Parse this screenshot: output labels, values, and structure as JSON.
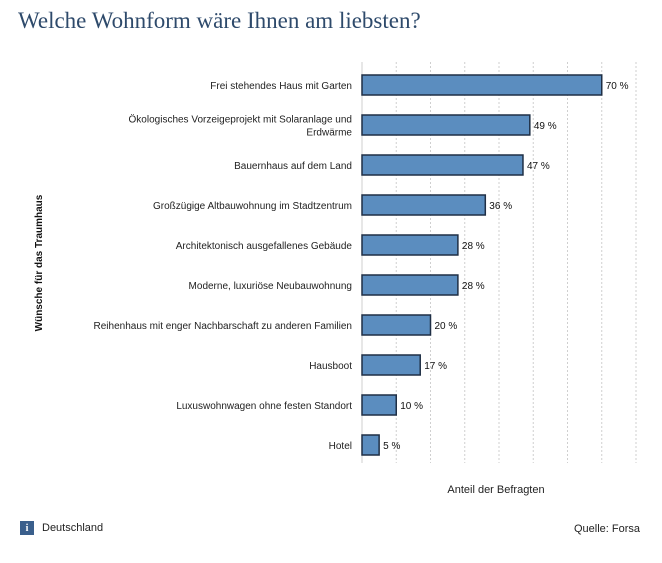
{
  "title": "Welche Wohnform wäre Ihnen am liebsten?",
  "footer": {
    "region": "Deutschland",
    "source": "Quelle: Forsa",
    "info_icon": "i"
  },
  "colors": {
    "bar": "#5b8dbf",
    "bar_stroke": "#1f2f45",
    "title": "#2e4a6b",
    "grid": "#cfcfcf"
  },
  "chart_data": {
    "type": "bar",
    "orientation": "horizontal",
    "categories": [
      "Frei stehendes Haus mit Garten",
      "Ökologisches Vorzeigeprojekt mit Solaranlage und Erdwärme",
      "Bauernhaus auf dem Land",
      "Großzügige Altbauwohnung im Stadtzentrum",
      "Architektonisch ausgefallenes Gebäude",
      "Moderne, luxuriöse Neubauwohnung",
      "Reihenhaus mit enger Nachbarschaft zu anderen Familien",
      "Hausboot",
      "Luxuswohnwagen ohne festen Standort",
      "Hotel"
    ],
    "category_lines": [
      [
        "Frei stehendes Haus mit Garten"
      ],
      [
        "Ökologisches Vorzeigeprojekt mit Solaranlage und",
        "Erdwärme"
      ],
      [
        "Bauernhaus auf dem Land"
      ],
      [
        "Großzügige Altbauwohnung im Stadtzentrum"
      ],
      [
        "Architektonisch ausgefallenes Gebäude"
      ],
      [
        "Moderne, luxuriöse Neubauwohnung"
      ],
      [
        "Reihenhaus mit enger Nachbarschaft zu anderen Familien"
      ],
      [
        "Hausboot"
      ],
      [
        "Luxuswohnwagen ohne festen Standort"
      ],
      [
        "Hotel"
      ]
    ],
    "values": [
      70,
      49,
      47,
      36,
      28,
      28,
      20,
      17,
      10,
      5
    ],
    "value_labels": [
      "70 %",
      "49 %",
      "47 %",
      "36 %",
      "28 %",
      "28 %",
      "20 %",
      "17 %",
      "10 %",
      "5 %"
    ],
    "xlabel": "Anteil der Befragten",
    "ylabel": "Wünsche für das Traumhaus",
    "xlim": [
      0,
      80
    ],
    "grid": true
  }
}
